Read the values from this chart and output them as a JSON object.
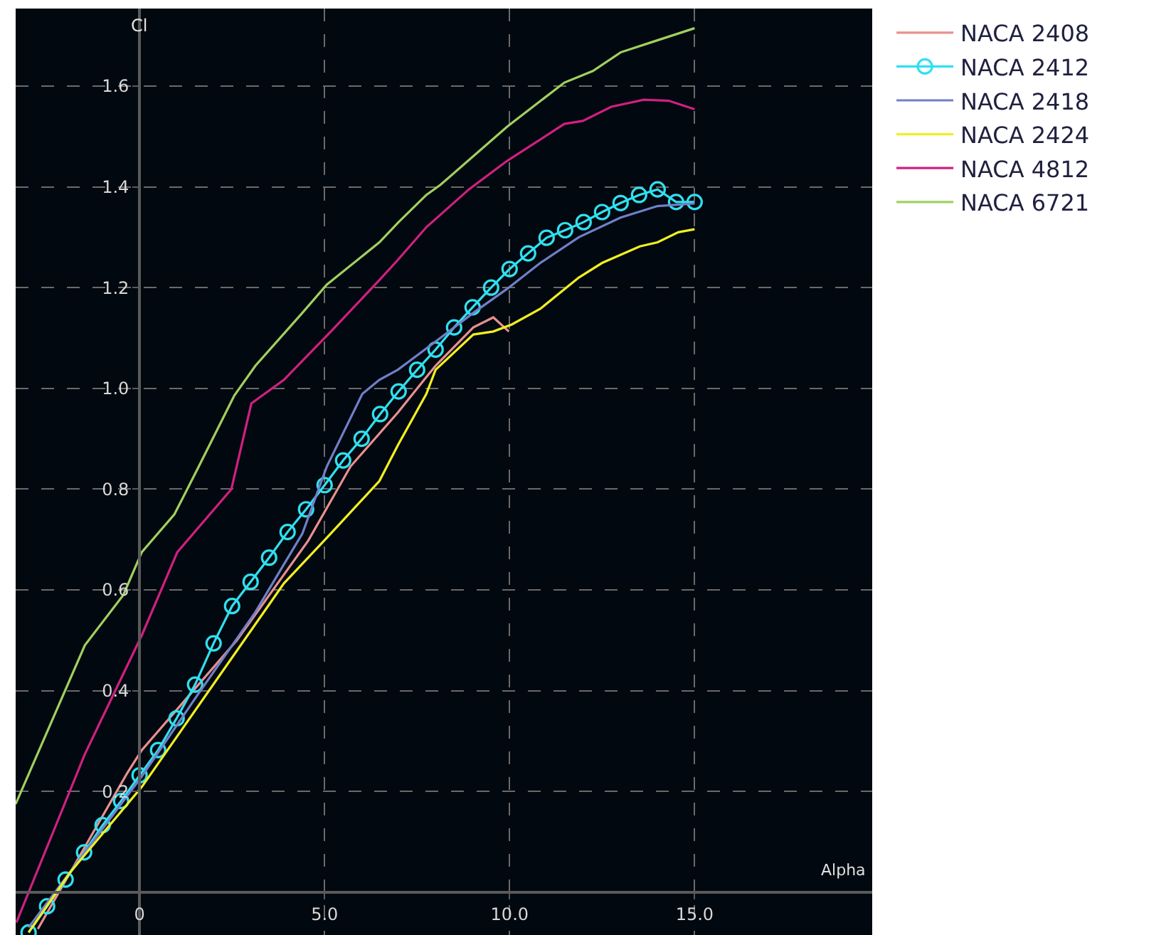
{
  "chart_data": {
    "type": "line",
    "xlabel": "Alpha",
    "ylabel": "Cl",
    "xlim": [
      -3.35,
      19.8
    ],
    "ylim": [
      -0.085,
      1.754
    ],
    "xticks": [
      0,
      {
        "value": 5,
        "label": "5.0"
      },
      {
        "value": 10,
        "label": "10.0"
      },
      {
        "value": 15,
        "label": "15.0"
      }
    ],
    "yticks": [
      {
        "value": 0.2,
        "label": "0.2"
      },
      {
        "value": 0.4,
        "label": "0.4"
      },
      {
        "value": 0.6,
        "label": "0.6"
      },
      {
        "value": 0.8,
        "label": "0.8"
      },
      {
        "value": 1.0,
        "label": "1.0"
      },
      {
        "value": 1.2,
        "label": "1.2"
      },
      {
        "value": 1.4,
        "label": "1.4"
      },
      {
        "value": 1.6,
        "label": "1.6"
      }
    ],
    "grid": true,
    "legend": "right",
    "line_style": "solid",
    "marker": "none",
    "series": [
      {
        "name": "NACA 2408",
        "color": "#e89090",
        "x": [
          -2.75,
          -0.33,
          0.06,
          2.63,
          4.56,
          5.7,
          6.98,
          7.69,
          8.0,
          9.02,
          9.56,
          9.98
        ],
        "values": [
          -0.073,
          0.237,
          0.282,
          0.5,
          0.698,
          0.845,
          0.952,
          1.017,
          1.045,
          1.121,
          1.141,
          1.113
        ]
      },
      {
        "name": "NACA 2412",
        "color": "#30e0f0",
        "marker": "circle",
        "x": [
          -3,
          -2.5,
          -2,
          -1.5,
          -1,
          -0.5,
          0,
          0.5,
          1,
          1.5,
          2,
          2.5,
          3,
          3.5,
          4,
          4.5,
          5,
          5.5,
          6,
          6.5,
          7,
          7.5,
          8,
          8.5,
          9,
          9.5,
          10,
          10.5,
          11,
          11.5,
          12,
          12.5,
          13,
          13.5,
          14,
          14.5,
          15
        ],
        "values": [
          -0.08,
          -0.028,
          0.025,
          0.079,
          0.133,
          0.181,
          0.232,
          0.282,
          0.345,
          0.412,
          0.494,
          0.568,
          0.616,
          0.664,
          0.715,
          0.76,
          0.808,
          0.857,
          0.9,
          0.949,
          0.994,
          1.037,
          1.077,
          1.121,
          1.161,
          1.2,
          1.237,
          1.268,
          1.299,
          1.314,
          1.33,
          1.35,
          1.368,
          1.384,
          1.395,
          1.37,
          1.37
        ]
      },
      {
        "name": "NACA 2418",
        "color": "#7080c8",
        "x": [
          -3,
          0.06,
          1.6,
          3.13,
          4.4,
          5.06,
          6.02,
          6.48,
          6.98,
          8.0,
          9.02,
          9.94,
          10.83,
          11.87,
          13.0,
          14.0,
          15.0
        ],
        "values": [
          -0.07,
          0.23,
          0.395,
          0.556,
          0.712,
          0.845,
          0.989,
          1.017,
          1.037,
          1.093,
          1.15,
          1.198,
          1.249,
          1.3,
          1.339,
          1.362,
          1.367
        ]
      },
      {
        "name": "NACA 2424",
        "color": "#f0f020",
        "x": [
          -3,
          -1.87,
          0.06,
          3.9,
          5.17,
          6.48,
          6.98,
          7.75,
          8.0,
          9.02,
          9.56,
          10.06,
          10.83,
          11.87,
          12.5,
          13.52,
          14.0,
          14.56,
          15.0
        ],
        "values": [
          -0.08,
          0.04,
          0.209,
          0.613,
          0.712,
          0.816,
          0.887,
          0.989,
          1.037,
          1.107,
          1.113,
          1.127,
          1.158,
          1.22,
          1.249,
          1.282,
          1.29,
          1.31,
          1.316
        ]
      },
      {
        "name": "NACA 4812",
        "color": "#d02080",
        "x": [
          -3.33,
          -1.48,
          0.06,
          1.02,
          2.48,
          3.02,
          3.9,
          5.17,
          6.48,
          6.98,
          7.75,
          8.9,
          9.94,
          11.48,
          11.98,
          12.75,
          13.63,
          14.3,
          15.0
        ],
        "values": [
          -0.06,
          0.274,
          0.51,
          0.675,
          0.8,
          0.97,
          1.017,
          1.113,
          1.215,
          1.255,
          1.32,
          1.395,
          1.452,
          1.525,
          1.531,
          1.559,
          1.573,
          1.571,
          1.554
        ]
      },
      {
        "name": "NACA 6721",
        "color": "#a0d060",
        "x": [
          -3.35,
          -1.48,
          -0.44,
          0.06,
          0.94,
          1.6,
          2.56,
          3.13,
          4.4,
          5.06,
          6.48,
          7.0,
          7.75,
          8.13,
          9.94,
          11.48,
          12.25,
          13.0,
          13.79,
          15.0
        ],
        "values": [
          0.175,
          0.49,
          0.59,
          0.675,
          0.75,
          0.845,
          0.986,
          1.045,
          1.15,
          1.206,
          1.29,
          1.33,
          1.384,
          1.404,
          1.52,
          1.607,
          1.63,
          1.667,
          1.686,
          1.715
        ]
      }
    ]
  }
}
